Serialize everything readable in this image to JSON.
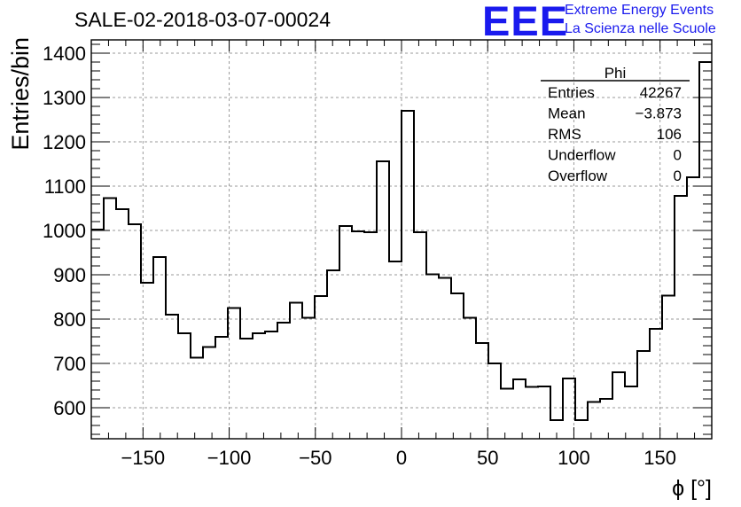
{
  "header": {
    "run_title": "SALE-02-2018-03-07-00024",
    "logo_text": "EEE",
    "logo_line1": "Extreme Energy Events",
    "logo_line2": "La Scienza nelle Scuole"
  },
  "stats_box": {
    "title": "Phi",
    "rows": [
      {
        "label": "Entries",
        "value": "42267"
      },
      {
        "label": "Mean",
        "value": "−3.873"
      },
      {
        "label": "RMS",
        "value": "106"
      },
      {
        "label": "Underflow",
        "value": "0"
      },
      {
        "label": "Overflow",
        "value": "0"
      }
    ]
  },
  "colors": {
    "line": "#000000",
    "grid": "#9a9a9a",
    "logo": "#1a1aee"
  },
  "chart_data": {
    "type": "histogram",
    "title": "",
    "xlabel": "ϕ [°]",
    "ylabel": "Entries/bin",
    "xlim": [
      -180,
      180
    ],
    "ylim": [
      530,
      1430
    ],
    "grid": true,
    "bin_width": 7.2,
    "x_ticks": [
      -150,
      -100,
      -50,
      0,
      50,
      100,
      150
    ],
    "x_tick_labels": [
      "−150",
      "−100",
      "−50",
      "0",
      "50",
      "100",
      "150"
    ],
    "y_ticks": [
      600,
      700,
      800,
      900,
      1000,
      1100,
      1200,
      1300,
      1400
    ],
    "y_tick_labels": [
      "600",
      "700",
      "800",
      "900",
      "1000",
      "1100",
      "1200",
      "1300",
      "1400"
    ],
    "values": [
      1002,
      1073,
      1048,
      1014,
      882,
      940,
      810,
      768,
      713,
      737,
      760,
      825,
      756,
      768,
      772,
      792,
      837,
      803,
      852,
      910,
      1010,
      998,
      996,
      1156,
      930,
      1270,
      996,
      901,
      893,
      858,
      803,
      746,
      700,
      643,
      664,
      647,
      648,
      572,
      666,
      572,
      613,
      620,
      680,
      648,
      728,
      778,
      853,
      1078,
      1120,
      1380
    ]
  }
}
